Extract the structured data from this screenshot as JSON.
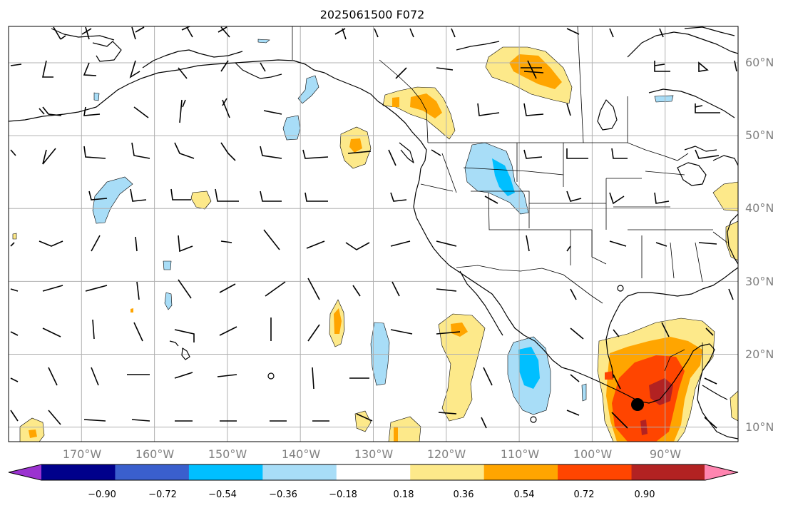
{
  "title": "2025061500 F072",
  "lat_labels": [
    "60°N",
    "50°N",
    "40°N",
    "30°N",
    "20°N",
    "10°N"
  ],
  "lon_labels": [
    "170°W",
    "160°W",
    "150°W",
    "140°W",
    "130°W",
    "120°W",
    "110°W",
    "100°W",
    "90°W"
  ],
  "colorbar": {
    "tick_labels": [
      "−0.90",
      "−0.72",
      "−0.54",
      "−0.36",
      "−0.18",
      "0.18",
      "0.36",
      "0.54",
      "0.72",
      "0.90"
    ],
    "colors": [
      "#9b32d0",
      "#00008b",
      "#3a5fcd",
      "#00bfff",
      "#a8ddf7",
      "#ffffff",
      "#fde98a",
      "#ffa500",
      "#ff4500",
      "#b22222",
      "#ff85b0"
    ]
  },
  "field_colors": {
    "light_yellow": "#fde98a",
    "orange": "#ffa500",
    "red_orange": "#ff4500",
    "dark_red": "#b22222",
    "light_blue": "#a8ddf7",
    "blue": "#00bfff"
  },
  "map_extent": {
    "lon_min": -180,
    "lon_max": -80,
    "lat_min": 8,
    "lat_max": 65
  }
}
